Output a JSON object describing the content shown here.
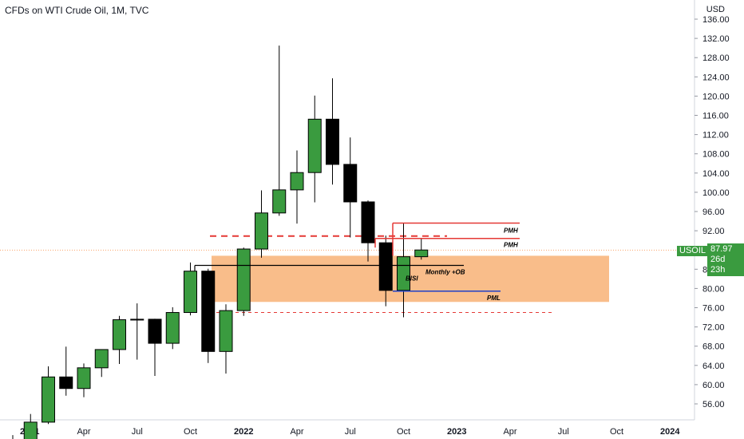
{
  "header": {
    "title": "CFDs on WTI Crude Oil, 1M, TVC",
    "currency": "USD"
  },
  "ticker": {
    "symbol": "USOIL",
    "price": "87.97",
    "countdown": "26d 23h"
  },
  "colors": {
    "up": "#3a9b3f",
    "down": "#000000",
    "zone": "#f9bd8a",
    "pmh": "#e53935",
    "pml": "#1e40c8",
    "price_line": "#f9a36a"
  },
  "chart_data": {
    "type": "candlestick",
    "title": "CFDs on WTI Crude Oil, 1M, TVC",
    "ylabel": "USD",
    "ylim": [
      53.5,
      137
    ],
    "y_ticks": [
      56,
      60,
      64,
      68,
      72,
      76,
      80,
      84,
      88,
      92,
      96,
      100,
      104,
      108,
      112,
      116,
      120,
      124,
      128,
      132,
      136
    ],
    "x_ticks": [
      "2021",
      "Apr",
      "Jul",
      "Oct",
      "2022",
      "Apr",
      "Jul",
      "Oct",
      "2023",
      "Apr",
      "Jul",
      "Oct",
      "2024"
    ],
    "candles": [
      {
        "date": "2020-12",
        "open": 48.5,
        "high": 49.5,
        "low": 46.8,
        "close": 48.4
      },
      {
        "date": "2021-01",
        "open": 48.4,
        "high": 53.9,
        "low": 47.2,
        "close": 52.2
      },
      {
        "date": "2021-02",
        "open": 52.2,
        "high": 63.8,
        "low": 51.8,
        "close": 61.6
      },
      {
        "date": "2021-03",
        "open": 61.6,
        "high": 67.9,
        "low": 57.7,
        "close": 59.2
      },
      {
        "date": "2021-04",
        "open": 59.2,
        "high": 64.4,
        "low": 57.4,
        "close": 63.5
      },
      {
        "date": "2021-05",
        "open": 63.5,
        "high": 67.3,
        "low": 61.6,
        "close": 67.3
      },
      {
        "date": "2021-06",
        "open": 67.3,
        "high": 74.3,
        "low": 64.3,
        "close": 73.5
      },
      {
        "date": "2021-07",
        "open": 73.5,
        "high": 76.9,
        "low": 65.2,
        "close": 73.6
      },
      {
        "date": "2021-08",
        "open": 73.6,
        "high": 73.7,
        "low": 61.8,
        "close": 68.6
      },
      {
        "date": "2021-09",
        "open": 68.6,
        "high": 76.1,
        "low": 67.4,
        "close": 75.0
      },
      {
        "date": "2021-10",
        "open": 75.0,
        "high": 85.4,
        "low": 74.4,
        "close": 83.6
      },
      {
        "date": "2021-11",
        "open": 83.6,
        "high": 84.1,
        "low": 64.5,
        "close": 66.9
      },
      {
        "date": "2021-12",
        "open": 66.9,
        "high": 76.7,
        "low": 62.3,
        "close": 75.4
      },
      {
        "date": "2022-01",
        "open": 75.4,
        "high": 88.5,
        "low": 74.3,
        "close": 88.2
      },
      {
        "date": "2022-02",
        "open": 88.2,
        "high": 100.4,
        "low": 86.4,
        "close": 95.7
      },
      {
        "date": "2022-03",
        "open": 95.7,
        "high": 130.5,
        "low": 95.1,
        "close": 100.5
      },
      {
        "date": "2022-04",
        "open": 100.5,
        "high": 108.7,
        "low": 93.5,
        "close": 104.1
      },
      {
        "date": "2022-05",
        "open": 104.1,
        "high": 120.1,
        "low": 97.9,
        "close": 115.2
      },
      {
        "date": "2022-06",
        "open": 115.2,
        "high": 123.7,
        "low": 101.6,
        "close": 105.8
      },
      {
        "date": "2022-07",
        "open": 105.8,
        "high": 111.4,
        "low": 90.6,
        "close": 98.0
      },
      {
        "date": "2022-08",
        "open": 98.0,
        "high": 98.3,
        "low": 85.6,
        "close": 89.5
      },
      {
        "date": "2022-09",
        "open": 89.5,
        "high": 91.0,
        "low": 76.3,
        "close": 79.6
      },
      {
        "date": "2022-10",
        "open": 79.6,
        "high": 93.6,
        "low": 74.0,
        "close": 86.6
      },
      {
        "date": "2022-11",
        "open": 86.6,
        "high": 90.4,
        "low": 86.0,
        "close": 88.0
      }
    ],
    "annotations": [
      {
        "label": "PMH",
        "level": 93.6
      },
      {
        "label": "PMH",
        "level": 90.4
      },
      {
        "label": "Monthly +OB",
        "level": 84.8
      },
      {
        "label": "BISI",
        "level": 82.5
      },
      {
        "label": "PML",
        "level": 79.6
      }
    ],
    "zones": [
      {
        "from": 77.2,
        "to": 86.8
      }
    ],
    "dashed_levels": [
      90.9,
      75.0
    ]
  }
}
